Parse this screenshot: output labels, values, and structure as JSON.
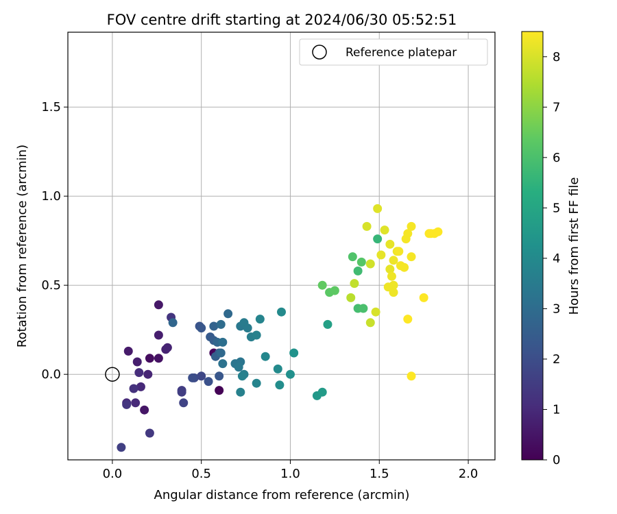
{
  "chart_data": {
    "type": "scatter",
    "title": "FOV centre drift starting at 2024/06/30 05:52:51",
    "xlabel": "Angular distance from reference (arcmin)",
    "ylabel": "Rotation from reference (arcmin)",
    "xlim": [
      -0.25,
      2.15
    ],
    "ylim": [
      -0.48,
      1.92
    ],
    "xticks": [
      0.0,
      0.5,
      1.0,
      1.5,
      2.0
    ],
    "xtick_labels": [
      "0.0",
      "0.5",
      "1.0",
      "1.5",
      "2.0"
    ],
    "yticks": [
      0.0,
      0.5,
      1.0,
      1.5
    ],
    "ytick_labels": [
      "0.0",
      "0.5",
      "1.0",
      "1.5"
    ],
    "grid": true,
    "legend": {
      "position": "upper right",
      "entries": [
        {
          "label": "Reference platepar",
          "marker": "open-circle"
        }
      ]
    },
    "reference_point": {
      "x": 0.0,
      "y": 0.0
    },
    "colorbar": {
      "label": "Hours from first FF file",
      "colormap": "viridis",
      "range": [
        0,
        8.5
      ],
      "ticks": [
        0,
        1,
        2,
        3,
        4,
        5,
        6,
        7,
        8
      ],
      "tick_labels": [
        "0",
        "1",
        "2",
        "3",
        "4",
        "5",
        "6",
        "7",
        "8"
      ]
    },
    "points": [
      {
        "x": 0.6,
        "y": -0.09,
        "c": 0.05
      },
      {
        "x": 0.57,
        "y": 0.12,
        "c": 0.15
      },
      {
        "x": 0.21,
        "y": 0.09,
        "c": 0.3
      },
      {
        "x": 0.26,
        "y": 0.09,
        "c": 0.4
      },
      {
        "x": 0.18,
        "y": -0.2,
        "c": 0.5
      },
      {
        "x": 0.26,
        "y": 0.39,
        "c": 0.55
      },
      {
        "x": 0.09,
        "y": 0.13,
        "c": 0.6
      },
      {
        "x": 0.14,
        "y": 0.07,
        "c": 0.7
      },
      {
        "x": 0.26,
        "y": 0.22,
        "c": 0.7
      },
      {
        "x": 0.3,
        "y": 0.14,
        "c": 0.8
      },
      {
        "x": 0.31,
        "y": 0.15,
        "c": 0.85
      },
      {
        "x": 0.2,
        "y": 0.0,
        "c": 0.9
      },
      {
        "x": 0.16,
        "y": -0.07,
        "c": 1.0
      },
      {
        "x": 0.13,
        "y": -0.16,
        "c": 1.0
      },
      {
        "x": 0.08,
        "y": -0.16,
        "c": 1.0
      },
      {
        "x": 0.15,
        "y": 0.01,
        "c": 1.1
      },
      {
        "x": 0.12,
        "y": -0.08,
        "c": 1.2
      },
      {
        "x": 0.08,
        "y": -0.17,
        "c": 1.3
      },
      {
        "x": 0.33,
        "y": 0.32,
        "c": 1.3
      },
      {
        "x": 0.21,
        "y": -0.33,
        "c": 1.4
      },
      {
        "x": 0.39,
        "y": -0.09,
        "c": 1.5
      },
      {
        "x": 0.39,
        "y": -0.1,
        "c": 1.55
      },
      {
        "x": 0.05,
        "y": -0.41,
        "c": 1.6
      },
      {
        "x": 0.4,
        "y": -0.16,
        "c": 1.7
      },
      {
        "x": 0.5,
        "y": -0.01,
        "c": 1.8
      },
      {
        "x": 0.46,
        "y": -0.02,
        "c": 1.9
      },
      {
        "x": 0.45,
        "y": -0.02,
        "c": 2.0
      },
      {
        "x": 0.54,
        "y": -0.04,
        "c": 2.1
      },
      {
        "x": 0.49,
        "y": 0.27,
        "c": 2.2
      },
      {
        "x": 0.5,
        "y": 0.26,
        "c": 2.3
      },
      {
        "x": 0.6,
        "y": -0.01,
        "c": 2.3
      },
      {
        "x": 0.55,
        "y": 0.21,
        "c": 2.4
      },
      {
        "x": 0.57,
        "y": 0.19,
        "c": 2.5
      },
      {
        "x": 0.6,
        "y": 0.12,
        "c": 2.5
      },
      {
        "x": 0.58,
        "y": 0.1,
        "c": 2.6
      },
      {
        "x": 0.57,
        "y": 0.27,
        "c": 2.7
      },
      {
        "x": 0.34,
        "y": 0.29,
        "c": 2.8
      },
      {
        "x": 0.59,
        "y": 0.18,
        "c": 2.8
      },
      {
        "x": 0.61,
        "y": 0.12,
        "c": 2.9
      },
      {
        "x": 0.65,
        "y": 0.34,
        "c": 2.9
      },
      {
        "x": 0.61,
        "y": 0.28,
        "c": 3.0
      },
      {
        "x": 0.62,
        "y": 0.18,
        "c": 3.1
      },
      {
        "x": 0.62,
        "y": 0.06,
        "c": 3.2
      },
      {
        "x": 0.69,
        "y": 0.06,
        "c": 3.3
      },
      {
        "x": 0.72,
        "y": 0.07,
        "c": 3.3
      },
      {
        "x": 0.71,
        "y": 0.04,
        "c": 3.4
      },
      {
        "x": 0.72,
        "y": 0.27,
        "c": 3.4
      },
      {
        "x": 0.74,
        "y": 0.29,
        "c": 3.5
      },
      {
        "x": 0.76,
        "y": 0.26,
        "c": 3.5
      },
      {
        "x": 0.78,
        "y": 0.21,
        "c": 3.6
      },
      {
        "x": 0.74,
        "y": 0.0,
        "c": 3.6
      },
      {
        "x": 0.73,
        "y": -0.01,
        "c": 3.7
      },
      {
        "x": 0.72,
        "y": -0.1,
        "c": 3.7
      },
      {
        "x": 0.81,
        "y": 0.22,
        "c": 3.7
      },
      {
        "x": 0.83,
        "y": 0.31,
        "c": 3.8
      },
      {
        "x": 0.81,
        "y": -0.05,
        "c": 3.8
      },
      {
        "x": 0.86,
        "y": 0.1,
        "c": 3.9
      },
      {
        "x": 0.93,
        "y": 0.03,
        "c": 4.0
      },
      {
        "x": 0.95,
        "y": 0.35,
        "c": 4.0
      },
      {
        "x": 0.94,
        "y": -0.06,
        "c": 4.1
      },
      {
        "x": 1.0,
        "y": 0.0,
        "c": 4.2
      },
      {
        "x": 1.02,
        "y": 0.12,
        "c": 4.3
      },
      {
        "x": 1.15,
        "y": -0.12,
        "c": 4.5
      },
      {
        "x": 1.18,
        "y": -0.1,
        "c": 4.6
      },
      {
        "x": 1.21,
        "y": 0.28,
        "c": 4.8
      },
      {
        "x": 1.49,
        "y": 0.76,
        "c": 5.6
      },
      {
        "x": 1.38,
        "y": 0.58,
        "c": 5.8
      },
      {
        "x": 1.38,
        "y": 0.37,
        "c": 5.9
      },
      {
        "x": 1.41,
        "y": 0.37,
        "c": 6.0
      },
      {
        "x": 1.35,
        "y": 0.66,
        "c": 6.1
      },
      {
        "x": 1.4,
        "y": 0.63,
        "c": 6.2
      },
      {
        "x": 1.22,
        "y": 0.46,
        "c": 6.3
      },
      {
        "x": 1.25,
        "y": 0.47,
        "c": 6.35
      },
      {
        "x": 1.18,
        "y": 0.5,
        "c": 6.4
      },
      {
        "x": 1.34,
        "y": 0.43,
        "c": 7.6
      },
      {
        "x": 1.36,
        "y": 0.51,
        "c": 7.7
      },
      {
        "x": 1.45,
        "y": 0.29,
        "c": 7.8
      },
      {
        "x": 1.45,
        "y": 0.62,
        "c": 7.9
      },
      {
        "x": 1.48,
        "y": 0.35,
        "c": 8.0
      },
      {
        "x": 1.43,
        "y": 0.83,
        "c": 8.0
      },
      {
        "x": 1.49,
        "y": 0.93,
        "c": 8.1
      },
      {
        "x": 1.53,
        "y": 0.81,
        "c": 8.1
      },
      {
        "x": 1.51,
        "y": 0.67,
        "c": 8.2
      },
      {
        "x": 1.56,
        "y": 0.73,
        "c": 8.2
      },
      {
        "x": 1.56,
        "y": 0.59,
        "c": 8.2
      },
      {
        "x": 1.57,
        "y": 0.55,
        "c": 8.3
      },
      {
        "x": 1.58,
        "y": 0.64,
        "c": 8.3
      },
      {
        "x": 1.58,
        "y": 0.5,
        "c": 8.3
      },
      {
        "x": 1.55,
        "y": 0.49,
        "c": 8.3
      },
      {
        "x": 1.58,
        "y": 0.46,
        "c": 8.3
      },
      {
        "x": 1.6,
        "y": 0.69,
        "c": 8.3
      },
      {
        "x": 1.61,
        "y": 0.69,
        "c": 8.4
      },
      {
        "x": 1.62,
        "y": 0.61,
        "c": 8.4
      },
      {
        "x": 1.64,
        "y": 0.6,
        "c": 8.4
      },
      {
        "x": 1.65,
        "y": 0.76,
        "c": 8.4
      },
      {
        "x": 1.66,
        "y": 0.79,
        "c": 8.4
      },
      {
        "x": 1.68,
        "y": 0.66,
        "c": 8.4
      },
      {
        "x": 1.68,
        "y": 0.83,
        "c": 8.4
      },
      {
        "x": 1.66,
        "y": 0.31,
        "c": 8.5
      },
      {
        "x": 1.68,
        "y": -0.01,
        "c": 8.5
      },
      {
        "x": 1.75,
        "y": 0.43,
        "c": 8.5
      },
      {
        "x": 1.78,
        "y": 0.79,
        "c": 8.5
      },
      {
        "x": 1.79,
        "y": 0.79,
        "c": 8.5
      },
      {
        "x": 1.81,
        "y": 0.79,
        "c": 8.5
      },
      {
        "x": 1.83,
        "y": 0.8,
        "c": 8.5
      }
    ]
  }
}
